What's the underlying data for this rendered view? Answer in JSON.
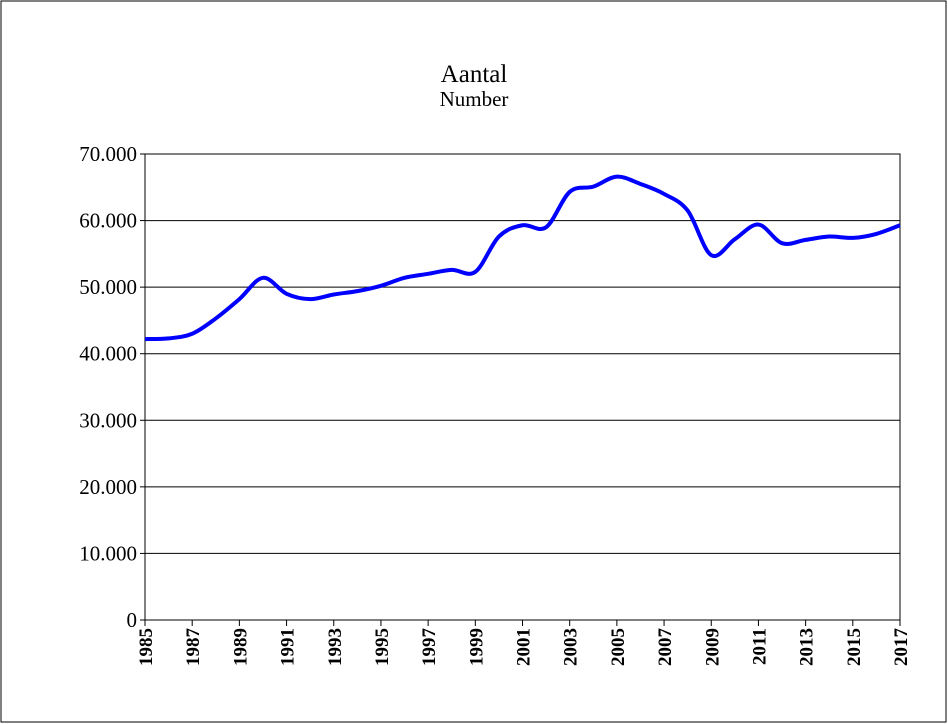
{
  "chart_data": {
    "type": "line",
    "title": "Aantal",
    "subtitle": "Number",
    "x": [
      1985,
      1986,
      1987,
      1988,
      1989,
      1990,
      1991,
      1992,
      1993,
      1994,
      1995,
      1996,
      1997,
      1998,
      1999,
      2000,
      2001,
      2002,
      2003,
      2004,
      2005,
      2006,
      2007,
      2008,
      2009,
      2010,
      2011,
      2012,
      2013,
      2014,
      2015,
      2016,
      2017
    ],
    "series": [
      {
        "name": "Aantal",
        "color": "#0000ff",
        "values": [
          42200,
          42300,
          43000,
          45300,
          48200,
          51400,
          49000,
          48200,
          48900,
          49400,
          50200,
          51400,
          52000,
          52600,
          52300,
          57600,
          59300,
          59000,
          64300,
          65100,
          66600,
          65500,
          64000,
          61500,
          54800,
          57200,
          59400,
          56600,
          57100,
          57600,
          57400,
          58000,
          59300
        ]
      }
    ],
    "xlim": [
      1985,
      2017
    ],
    "xticks": [
      1985,
      1987,
      1989,
      1991,
      1993,
      1995,
      1997,
      1999,
      2001,
      2003,
      2005,
      2007,
      2009,
      2011,
      2013,
      2015,
      2017
    ],
    "ylim": [
      0,
      70000
    ],
    "yticks": [
      0,
      {
        "value": 10000,
        "label": "10.000"
      },
      {
        "value": 20000,
        "label": "20.000"
      },
      {
        "value": 30000,
        "label": "30.000"
      },
      {
        "value": 40000,
        "label": "40.000"
      },
      {
        "value": 50000,
        "label": "50.000"
      },
      {
        "value": 60000,
        "label": "60.000"
      },
      {
        "value": 70000,
        "label": "70.000"
      }
    ],
    "grid": true
  }
}
